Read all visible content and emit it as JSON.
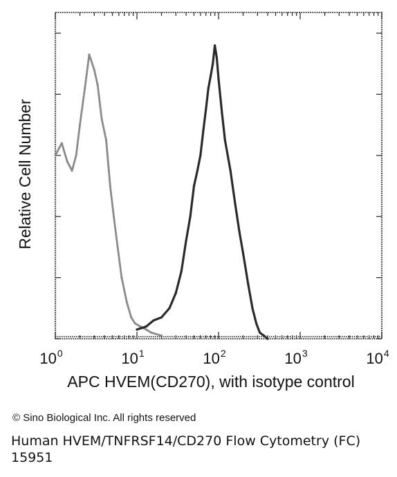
{
  "chart_data": {
    "type": "area",
    "title": "",
    "xlabel": "APC HVEM(CD270), with isotype control",
    "ylabel": "Relative Cell Number",
    "x_scale": "log",
    "xlim": [
      1,
      10000
    ],
    "ylim": [
      0,
      100
    ],
    "x_ticks": [
      {
        "base": "10",
        "exp": "0",
        "value": 1
      },
      {
        "base": "10",
        "exp": "1",
        "value": 10
      },
      {
        "base": "10",
        "exp": "2",
        "value": 100
      },
      {
        "base": "10",
        "exp": "3",
        "value": 1000
      },
      {
        "base": "10",
        "exp": "4",
        "value": 10000
      }
    ],
    "grid": false,
    "series": [
      {
        "role": "isotype control",
        "color": "#8a8a8a",
        "style": "dotted",
        "x": [
          1,
          1.2,
          1.4,
          1.6,
          1.8,
          2.0,
          2.3,
          2.6,
          3.0,
          3.3,
          3.7,
          4.2,
          4.7,
          5.2,
          5.8,
          6.5,
          7.5,
          8.5,
          9.5,
          11,
          13,
          15,
          20
        ],
        "y": [
          60,
          64,
          58,
          55,
          60,
          70,
          82,
          93,
          88,
          83,
          72,
          65,
          50,
          40,
          30,
          20,
          12,
          7,
          5,
          4,
          3,
          2,
          1
        ]
      },
      {
        "role": "HVEM (CD270)",
        "color": "#2a2a2a",
        "style": "solid",
        "x": [
          10,
          13,
          16,
          20,
          25,
          30,
          35,
          40,
          45,
          50,
          55,
          60,
          65,
          70,
          75,
          80,
          85,
          90,
          95,
          100,
          110,
          120,
          140,
          160,
          180,
          200,
          230,
          260,
          290,
          320,
          360,
          400
        ],
        "y": [
          3,
          4,
          6,
          7,
          10,
          15,
          22,
          32,
          40,
          50,
          55,
          60,
          68,
          75,
          82,
          86,
          90,
          96,
          92,
          85,
          74,
          65,
          55,
          44,
          35,
          28,
          18,
          10,
          5,
          2,
          1,
          0
        ]
      }
    ]
  },
  "copyright": "© Sino Biological Inc. All rights reserved",
  "caption": "Human HVEM/TNFRSF14/CD270 Flow Cytometry (FC) 15951"
}
